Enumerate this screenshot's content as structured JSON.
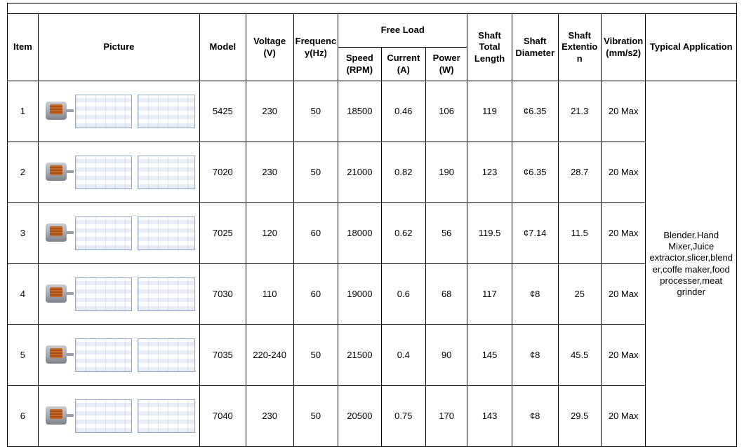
{
  "headers": {
    "item": "Item",
    "picture": "Picture",
    "model": "Model",
    "voltage": "Voltage (V)",
    "frequency": "Frequency(Hz)",
    "freeload": "Free Load",
    "speed": "Speed (RPM)",
    "current": "Current (A)",
    "power": "Power (W)",
    "shaft_total_length": "Shaft Total Length",
    "shaft_diameter": "Shaft Diameter",
    "shaft_extention": "Shaft Extention",
    "vibration": "Vibration(mm/s2)",
    "typical_application": "Typical Application"
  },
  "application_text": "Blender.Hand Mixer,Juice extractor,slicer,blender,coffe maker,food processer,meat grinder",
  "rows": [
    {
      "item": "1",
      "model": "5425",
      "voltage": "230",
      "frequency": "50",
      "speed": "18500",
      "current": "0.46",
      "power": "106",
      "shaft_total_length": "119",
      "shaft_diameter": "¢6.35",
      "shaft_extention": "21.3",
      "vibration": "20 Max"
    },
    {
      "item": "2",
      "model": "7020",
      "voltage": "230",
      "frequency": "50",
      "speed": "21000",
      "current": "0.82",
      "power": "190",
      "shaft_total_length": "123",
      "shaft_diameter": "¢6.35",
      "shaft_extention": "28.7",
      "vibration": "20 Max"
    },
    {
      "item": "3",
      "model": "7025",
      "voltage": "120",
      "frequency": "60",
      "speed": "18000",
      "current": "0.62",
      "power": "56",
      "shaft_total_length": "119.5",
      "shaft_diameter": "¢7.14",
      "shaft_extention": "11.5",
      "vibration": "20 Max"
    },
    {
      "item": "4",
      "model": "7030",
      "voltage": "110",
      "frequency": "60",
      "speed": "19000",
      "current": "0.6",
      "power": "68",
      "shaft_total_length": "117",
      "shaft_diameter": "¢8",
      "shaft_extention": "25",
      "vibration": "20 Max"
    },
    {
      "item": "5",
      "model": "7035",
      "voltage": "220-240",
      "frequency": "50",
      "speed": "21500",
      "current": "0.4",
      "power": "90",
      "shaft_total_length": "145",
      "shaft_diameter": "¢8",
      "shaft_extention": "45.5",
      "vibration": "20 Max"
    },
    {
      "item": "6",
      "model": "7040",
      "voltage": "230",
      "frequency": "50",
      "speed": "20500",
      "current": "0.75",
      "power": "170",
      "shaft_total_length": "143",
      "shaft_diameter": "¢8",
      "shaft_extention": "29.5",
      "vibration": "20 Max"
    }
  ],
  "style": {
    "border_color": "#000000",
    "background": "#ffffff",
    "font_family": "Arial",
    "header_fontsize": 13,
    "cell_fontsize": 13,
    "diagram_line_color": "#8fa7c9",
    "motor_body_gradient": [
      "#c9ccd1",
      "#9ea3aa",
      "#7d828a"
    ],
    "copper": "#c66a2b"
  }
}
